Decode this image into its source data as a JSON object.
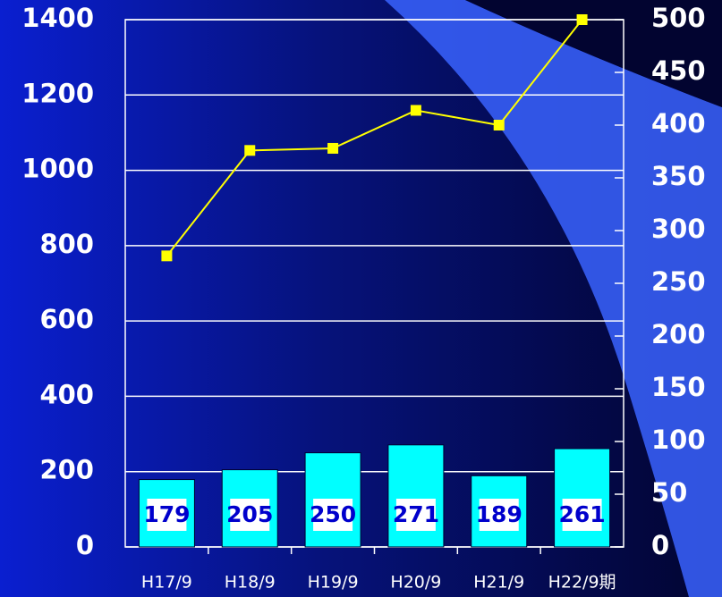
{
  "chart_data": {
    "type": "bar_line",
    "categories": [
      "H17/9",
      "H18/9",
      "H19/9",
      "H20/9",
      "H21/9",
      "H22/9期"
    ],
    "series": [
      {
        "type": "bar",
        "color": "#00ffff",
        "values": [
          179,
          205,
          250,
          271,
          189,
          261
        ]
      },
      {
        "type": "line",
        "color": "#ffff00",
        "axis": "y2",
        "values": [
          276,
          376,
          378,
          414,
          400,
          500
        ]
      }
    ],
    "ylim": [
      0,
      1400
    ],
    "yticks": [
      0,
      200,
      400,
      600,
      800,
      1000,
      1200,
      1400
    ],
    "y2lim": [
      0,
      500
    ],
    "y2ticks": [
      0,
      50,
      100,
      150,
      200,
      250,
      300,
      350,
      400,
      450,
      500
    ],
    "grid": true
  }
}
